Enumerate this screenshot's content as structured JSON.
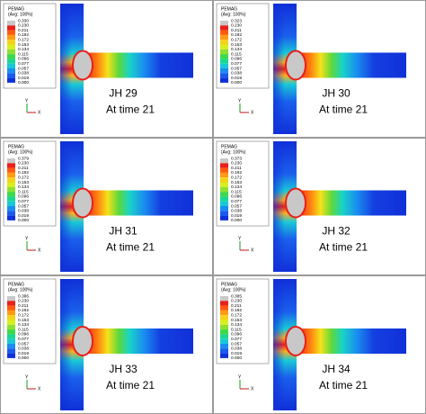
{
  "panels": [
    {
      "legend_title": "PEMAG",
      "legend_subtitle": "(Avg: 100%)",
      "legend_values": [
        "0.330",
        "0.230",
        "0.211",
        "0.192",
        "0.172",
        "0.153",
        "0.134",
        "0.115",
        "0.096",
        "0.077",
        "0.057",
        "0.038",
        "0.019",
        "0.000"
      ],
      "label": "JH 29",
      "time": "At time 21"
    },
    {
      "legend_title": "PEMAG",
      "legend_subtitle": "(Avg: 100%)",
      "legend_values": [
        "0.323",
        "0.230",
        "0.211",
        "0.192",
        "0.172",
        "0.153",
        "0.134",
        "0.115",
        "0.096",
        "0.077",
        "0.057",
        "0.038",
        "0.019",
        "0.000"
      ],
      "label": "JH 30",
      "time": "At time 21"
    },
    {
      "legend_title": "PEMAG",
      "legend_subtitle": "(Avg: 100%)",
      "legend_values": [
        "0.379",
        "0.230",
        "0.211",
        "0.192",
        "0.172",
        "0.153",
        "0.134",
        "0.115",
        "0.096",
        "0.077",
        "0.057",
        "0.038",
        "0.019",
        "0.000"
      ],
      "label": "JH 31",
      "time": "At time 21"
    },
    {
      "legend_title": "PEMAG",
      "legend_subtitle": "(Avg: 100%)",
      "legend_values": [
        "0.373",
        "0.230",
        "0.211",
        "0.192",
        "0.172",
        "0.153",
        "0.134",
        "0.115",
        "0.096",
        "0.077",
        "0.057",
        "0.038",
        "0.019",
        "0.000"
      ],
      "label": "JH 32",
      "time": "At time 21"
    },
    {
      "legend_title": "PEMAG",
      "legend_subtitle": "(Avg: 100%)",
      "legend_values": [
        "0.386",
        "0.230",
        "0.211",
        "0.192",
        "0.172",
        "0.153",
        "0.134",
        "0.115",
        "0.096",
        "0.077",
        "0.057",
        "0.038",
        "0.019",
        "0.000"
      ],
      "label": "JH 33",
      "time": "At time 21"
    },
    {
      "legend_title": "PEMAG",
      "legend_subtitle": "(Avg: 100%)",
      "legend_values": [
        "0.385",
        "0.230",
        "0.211",
        "0.192",
        "0.172",
        "0.153",
        "0.134",
        "0.115",
        "0.096",
        "0.077",
        "0.057",
        "0.038",
        "0.019",
        "0.000"
      ],
      "label": "JH 34",
      "time": "At time 21"
    }
  ],
  "triad": {
    "y": "Y",
    "x": "X"
  }
}
